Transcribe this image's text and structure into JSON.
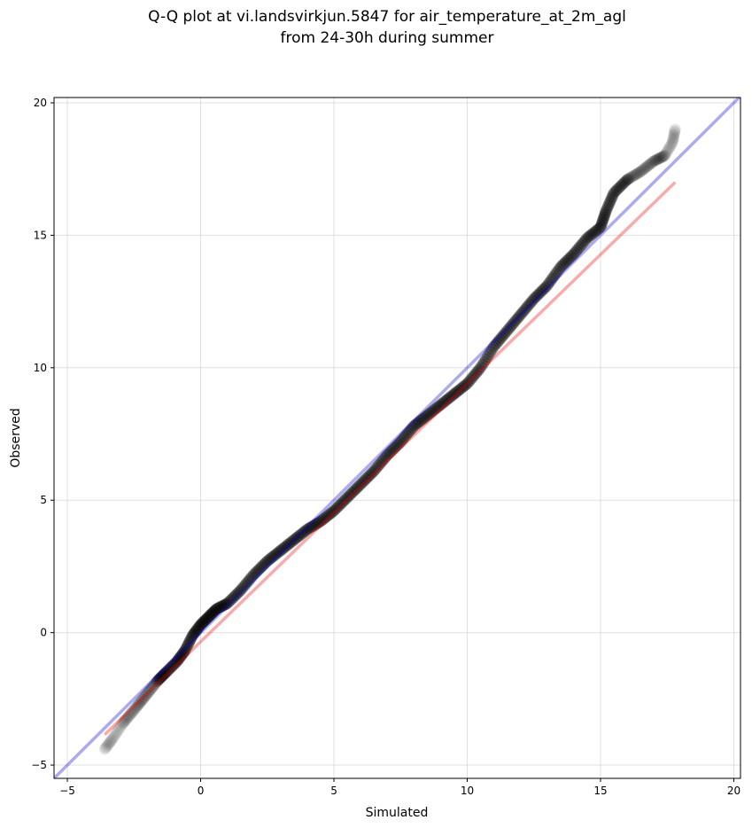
{
  "chart_data": {
    "type": "scatter",
    "title_lines": [
      "Q-Q plot at vi.landsvirkjun.5847 for air_temperature_at_2m_agl",
      "from 24-30h during summer"
    ],
    "xlabel": "Simulated",
    "ylabel": "Observed",
    "xlim": [
      -5.5,
      20.25
    ],
    "ylim": [
      -5.5,
      20.2
    ],
    "xticks": [
      -5,
      0,
      5,
      10,
      15,
      20
    ],
    "yticks": [
      -5,
      0,
      5,
      10,
      15,
      20
    ],
    "grid": true,
    "colors": {
      "points": "#000000",
      "identity_line": "#0000cc",
      "fit_line": "#ee0000",
      "grid": "#cccccc"
    },
    "identity_line": {
      "x": [
        -5.5,
        20.25
      ],
      "y": [
        -5.5,
        20.25
      ]
    },
    "fit_line": {
      "x": [
        -3.6,
        17.8
      ],
      "y": [
        -3.85,
        17.0
      ]
    },
    "quantile_curve": {
      "x": [
        -3.6,
        -3.3,
        -2.9,
        -2.4,
        -2.0,
        -1.6,
        -1.3,
        -0.9,
        -0.6,
        -0.3,
        0.0,
        0.3,
        0.6,
        1.0,
        1.5,
        2.0,
        2.5,
        3.0,
        3.5,
        4.0,
        4.5,
        5.0,
        5.5,
        6.0,
        6.5,
        7.0,
        7.5,
        8.0,
        8.5,
        9.0,
        9.5,
        10.0,
        10.5,
        11.0,
        11.5,
        12.0,
        12.5,
        13.0,
        13.5,
        14.0,
        14.5,
        15.0,
        15.2,
        15.5,
        16.0,
        16.5,
        17.0,
        17.4,
        17.7,
        17.8
      ],
      "y": [
        -4.4,
        -4.0,
        -3.4,
        -2.8,
        -2.3,
        -1.8,
        -1.5,
        -1.1,
        -0.7,
        -0.1,
        0.3,
        0.6,
        0.9,
        1.1,
        1.6,
        2.2,
        2.7,
        3.1,
        3.5,
        3.9,
        4.2,
        4.6,
        5.1,
        5.6,
        6.1,
        6.7,
        7.2,
        7.8,
        8.2,
        8.6,
        9.0,
        9.4,
        10.0,
        10.8,
        11.4,
        12.0,
        12.6,
        13.1,
        13.8,
        14.3,
        14.9,
        15.3,
        15.9,
        16.6,
        17.1,
        17.4,
        17.8,
        18.0,
        18.5,
        19.0
      ]
    },
    "n_points": 420
  }
}
